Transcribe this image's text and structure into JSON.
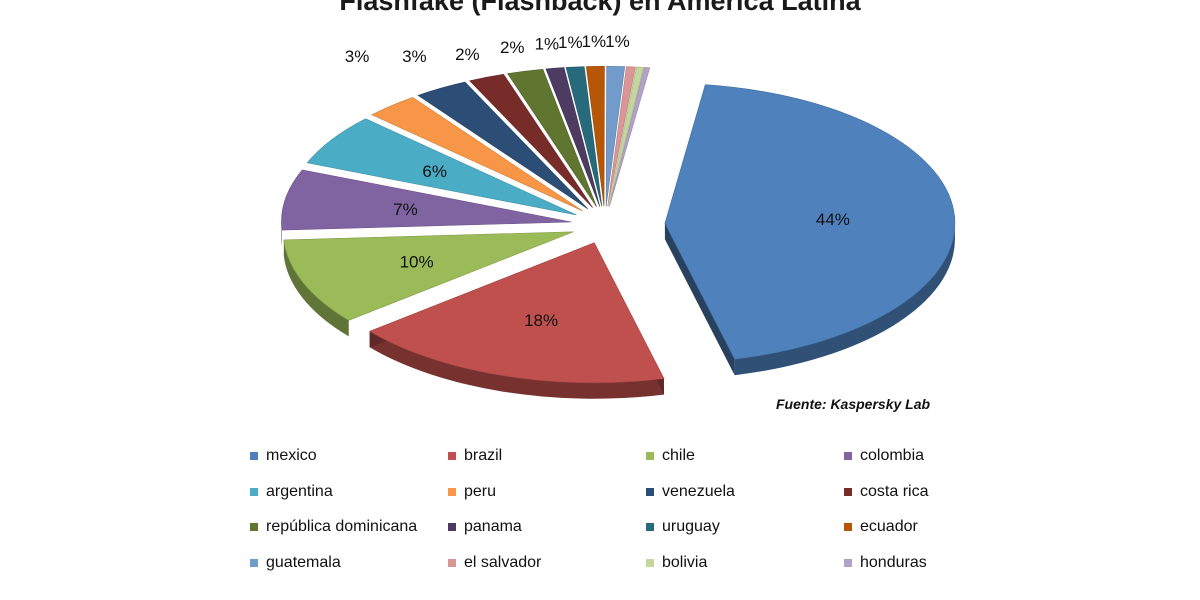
{
  "chart_data": {
    "type": "pie",
    "title": "Flashfake (Flashback) en America Latina",
    "source": "Fuente: Kaspersky Lab",
    "legend_position": "bottom",
    "slices": [
      {
        "label": "mexico",
        "value": 44,
        "value_label": "44%",
        "color": "#4f81bd"
      },
      {
        "label": "brazil",
        "value": 18,
        "value_label": "18%",
        "color": "#c0504d"
      },
      {
        "label": "chile",
        "value": 10,
        "value_label": "10%",
        "color": "#9bbb59"
      },
      {
        "label": "colombia",
        "value": 7,
        "value_label": "7%",
        "color": "#8064a2"
      },
      {
        "label": "argentina",
        "value": 6,
        "value_label": "6%",
        "color": "#4bacc6"
      },
      {
        "label": "peru",
        "value": 3,
        "value_label": "3%",
        "color": "#f79646"
      },
      {
        "label": "venezuela",
        "value": 3,
        "value_label": "3%",
        "color": "#2c4d75"
      },
      {
        "label": "costa rica",
        "value": 2,
        "value_label": "2%",
        "color": "#772c2a"
      },
      {
        "label": "república dominicana",
        "value": 2,
        "value_label": "2%",
        "color": "#5f7530"
      },
      {
        "label": "panama",
        "value": 1,
        "value_label": "1%",
        "color": "#4d3b62"
      },
      {
        "label": "uruguay",
        "value": 1,
        "value_label": "1%",
        "color": "#276a7c"
      },
      {
        "label": "ecuador",
        "value": 1,
        "value_label": "1%",
        "color": "#b65708"
      },
      {
        "label": "guatemala",
        "value": 1,
        "value_label": "1%",
        "color": "#729aca"
      },
      {
        "label": "el salvador",
        "value": 0.5,
        "value_label": "",
        "color": "#d99694"
      },
      {
        "label": "bolivia",
        "value": 0.4,
        "value_label": "",
        "color": "#c3d69b"
      },
      {
        "label": "honduras",
        "value": 0.3,
        "value_label": "",
        "color": "#b3a2c7"
      }
    ]
  }
}
